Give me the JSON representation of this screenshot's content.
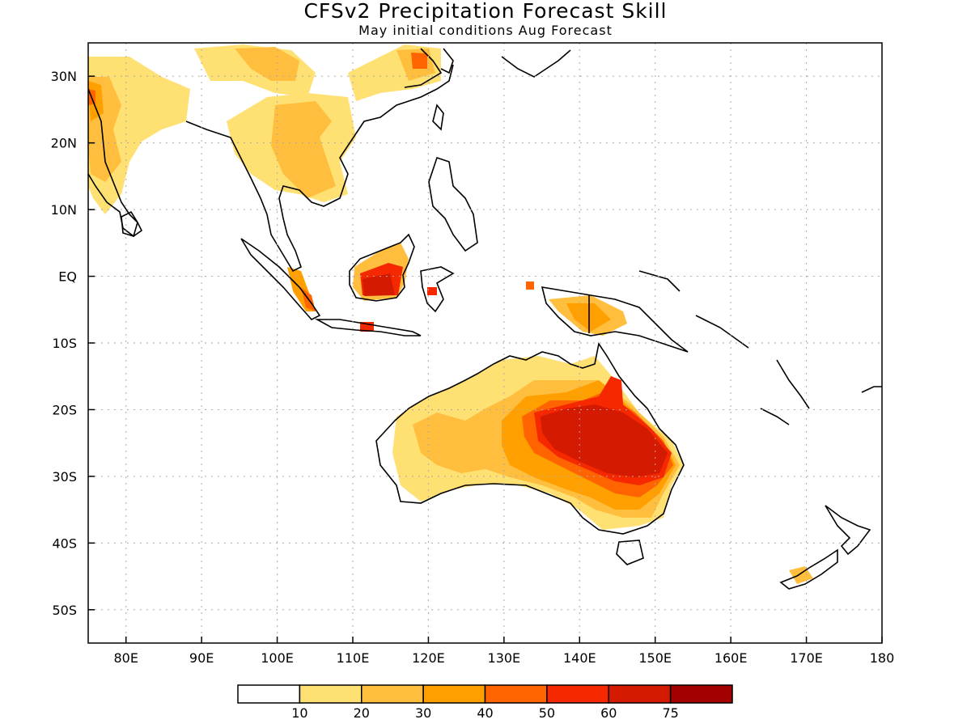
{
  "header": {
    "title": "CFSv2 Precipitation Forecast Skill",
    "subtitle": "May initial conditions  Aug Forecast"
  },
  "map": {
    "lon_range": [
      75,
      180
    ],
    "lat_range": [
      -55,
      35
    ],
    "lon_ticks": [
      {
        "value": 80,
        "label": "80E"
      },
      {
        "value": 90,
        "label": "90E"
      },
      {
        "value": 100,
        "label": "100E"
      },
      {
        "value": 110,
        "label": "110E"
      },
      {
        "value": 120,
        "label": "120E"
      },
      {
        "value": 130,
        "label": "130E"
      },
      {
        "value": 140,
        "label": "140E"
      },
      {
        "value": 150,
        "label": "150E"
      },
      {
        "value": 160,
        "label": "160E"
      },
      {
        "value": 170,
        "label": "170E"
      },
      {
        "value": 180,
        "label": "180"
      }
    ],
    "lat_ticks": [
      {
        "value": 30,
        "label": "30N"
      },
      {
        "value": 20,
        "label": "20N"
      },
      {
        "value": 10,
        "label": "10N"
      },
      {
        "value": 0,
        "label": "EQ"
      },
      {
        "value": -10,
        "label": "10S"
      },
      {
        "value": -20,
        "label": "20S"
      },
      {
        "value": -30,
        "label": "30S"
      },
      {
        "value": -40,
        "label": "40S"
      },
      {
        "value": -50,
        "label": "50S"
      }
    ],
    "grid": true
  },
  "legend": {
    "colors": [
      "#ffffff",
      "#ffe173",
      "#ffbe3d",
      "#ff9f00",
      "#ff6400",
      "#f52800",
      "#d41a00",
      "#a30000"
    ],
    "labels": [
      "10",
      "20",
      "30",
      "40",
      "50",
      "60",
      "75"
    ]
  }
}
